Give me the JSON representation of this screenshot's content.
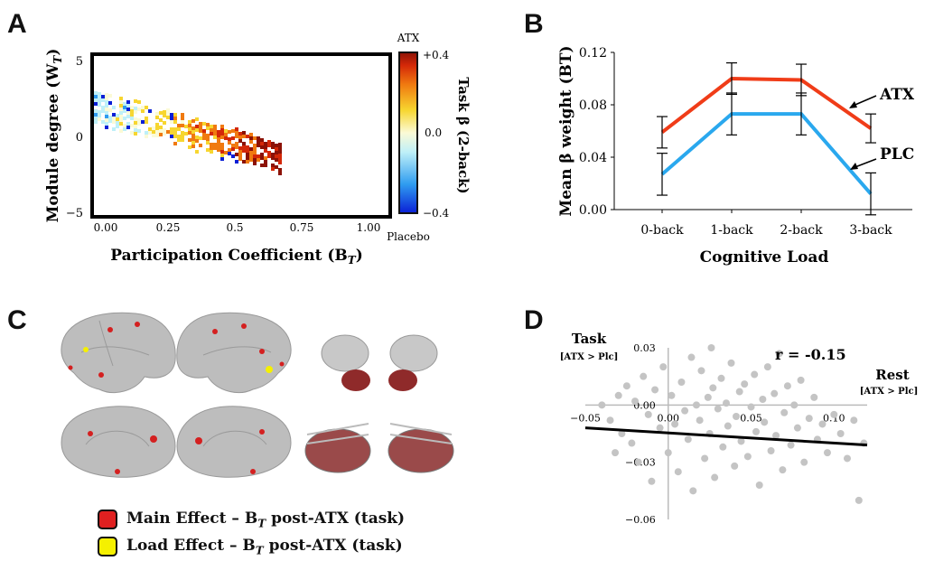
{
  "panels": {
    "a": "A",
    "b": "B",
    "c": "C",
    "d": "D"
  },
  "panel_a": {
    "ylabel": "Module degree (W",
    "ylabel_sub": "T",
    "ylabel_end": ")",
    "xlabel": "Participation Coefficient (B",
    "xlabel_sub": "T",
    "xlabel_end": ")",
    "yticks": [
      "5",
      "0",
      "−5"
    ],
    "xticks": [
      "0.00",
      "0.25",
      "0.5",
      "0.75",
      "1.00"
    ],
    "colorbar": {
      "top_label": "ATX",
      "bottom_label": "Placebo",
      "ticks": [
        "+0.4",
        "0.0",
        "−0.4"
      ],
      "title": "Task β (2-back)",
      "colors": [
        "#0a1fd6",
        "#2f9cf0",
        "#bff0f8",
        "#fbfad6",
        "#f7d630",
        "#f07a10",
        "#d42808",
        "#8c1206"
      ]
    }
  },
  "panel_c": {
    "legend": [
      {
        "text": "Main Effect – B",
        "sub": "T",
        "rest": " post-ATX (task)",
        "color": "#e02020"
      },
      {
        "text": "Load Effect – B",
        "sub": "T",
        "rest": " post-ATX (task)",
        "color": "#f5f000"
      }
    ]
  },
  "chart_data": [
    {
      "type": "line",
      "panel": "B",
      "categories": [
        "0-back",
        "1-back",
        "2-back",
        "3-back"
      ],
      "xlabel": "Cognitive Load",
      "ylabel": "Mean β weight (BT)",
      "ylim": [
        0,
        0.12
      ],
      "yticks": [
        "0.00",
        "0.04",
        "0.08",
        "0.12"
      ],
      "series": [
        {
          "name": "ATX",
          "color": "#f03c18",
          "values": [
            0.059,
            0.1,
            0.099,
            0.062
          ],
          "err": [
            0.012,
            0.012,
            0.012,
            0.011
          ]
        },
        {
          "name": "PLC",
          "color": "#2aa8ee",
          "values": [
            0.027,
            0.073,
            0.073,
            0.012
          ],
          "err": [
            0.016,
            0.016,
            0.016,
            0.016
          ]
        }
      ]
    },
    {
      "type": "scatter",
      "panel": "D",
      "annotation": "r = -0.15",
      "ylabel": "Task",
      "ylabel_sub": "[ATX > Plc]",
      "xlabel": "Rest",
      "xlabel_sub": "[ATX > Plc]",
      "xlim": [
        -0.05,
        0.12
      ],
      "ylim": [
        -0.06,
        0.03
      ],
      "xticks": [
        "−0.05",
        "0.00",
        "0.05",
        "0.10"
      ],
      "yticks": [
        "0.03",
        "0.00",
        "−0.03",
        "−0.06"
      ],
      "point_color": "#c4c4c4",
      "fit": {
        "x": [
          -0.05,
          0.12
        ],
        "y": [
          -0.012,
          -0.021
        ]
      },
      "points": [
        [
          -0.04,
          0.0
        ],
        [
          -0.035,
          -0.008
        ],
        [
          -0.03,
          0.005
        ],
        [
          -0.028,
          -0.015
        ],
        [
          -0.025,
          0.01
        ],
        [
          -0.022,
          -0.02
        ],
        [
          -0.02,
          0.002
        ],
        [
          -0.018,
          -0.03
        ],
        [
          -0.015,
          0.015
        ],
        [
          -0.012,
          -0.005
        ],
        [
          -0.01,
          -0.04
        ],
        [
          -0.008,
          0.008
        ],
        [
          -0.005,
          -0.012
        ],
        [
          -0.003,
          0.02
        ],
        [
          0.0,
          -0.025
        ],
        [
          0.002,
          0.005
        ],
        [
          0.004,
          -0.01
        ],
        [
          0.006,
          -0.035
        ],
        [
          0.008,
          0.012
        ],
        [
          0.01,
          -0.003
        ],
        [
          0.012,
          -0.018
        ],
        [
          0.014,
          0.025
        ],
        [
          0.015,
          -0.045
        ],
        [
          0.017,
          0.0
        ],
        [
          0.019,
          -0.008
        ],
        [
          0.02,
          0.018
        ],
        [
          0.022,
          -0.028
        ],
        [
          0.024,
          0.004
        ],
        [
          0.025,
          -0.015
        ],
        [
          0.027,
          0.009
        ],
        [
          0.028,
          -0.038
        ],
        [
          0.03,
          -0.002
        ],
        [
          0.032,
          0.014
        ],
        [
          0.033,
          -0.022
        ],
        [
          0.035,
          0.001
        ],
        [
          0.036,
          -0.011
        ],
        [
          0.038,
          0.022
        ],
        [
          0.04,
          -0.032
        ],
        [
          0.041,
          -0.006
        ],
        [
          0.043,
          0.007
        ],
        [
          0.044,
          -0.019
        ],
        [
          0.046,
          0.011
        ],
        [
          0.048,
          -0.027
        ],
        [
          0.05,
          -0.001
        ],
        [
          0.052,
          0.016
        ],
        [
          0.053,
          -0.014
        ],
        [
          0.055,
          -0.042
        ],
        [
          0.057,
          0.003
        ],
        [
          0.058,
          -0.009
        ],
        [
          0.06,
          0.02
        ],
        [
          0.062,
          -0.024
        ],
        [
          0.064,
          0.006
        ],
        [
          0.065,
          -0.016
        ],
        [
          0.067,
          0.027
        ],
        [
          0.069,
          -0.034
        ],
        [
          0.07,
          -0.004
        ],
        [
          0.072,
          0.01
        ],
        [
          0.074,
          -0.021
        ],
        [
          0.076,
          0.0
        ],
        [
          0.078,
          -0.012
        ],
        [
          0.08,
          0.013
        ],
        [
          0.082,
          -0.03
        ],
        [
          0.085,
          -0.007
        ],
        [
          0.088,
          0.004
        ],
        [
          0.09,
          -0.018
        ],
        [
          0.093,
          -0.01
        ],
        [
          0.096,
          -0.025
        ],
        [
          0.1,
          -0.005
        ],
        [
          0.104,
          -0.015
        ],
        [
          0.108,
          -0.028
        ],
        [
          0.112,
          -0.008
        ],
        [
          0.115,
          -0.05
        ],
        [
          0.118,
          -0.02
        ],
        [
          -0.032,
          -0.025
        ],
        [
          0.026,
          0.03
        ]
      ]
    }
  ]
}
